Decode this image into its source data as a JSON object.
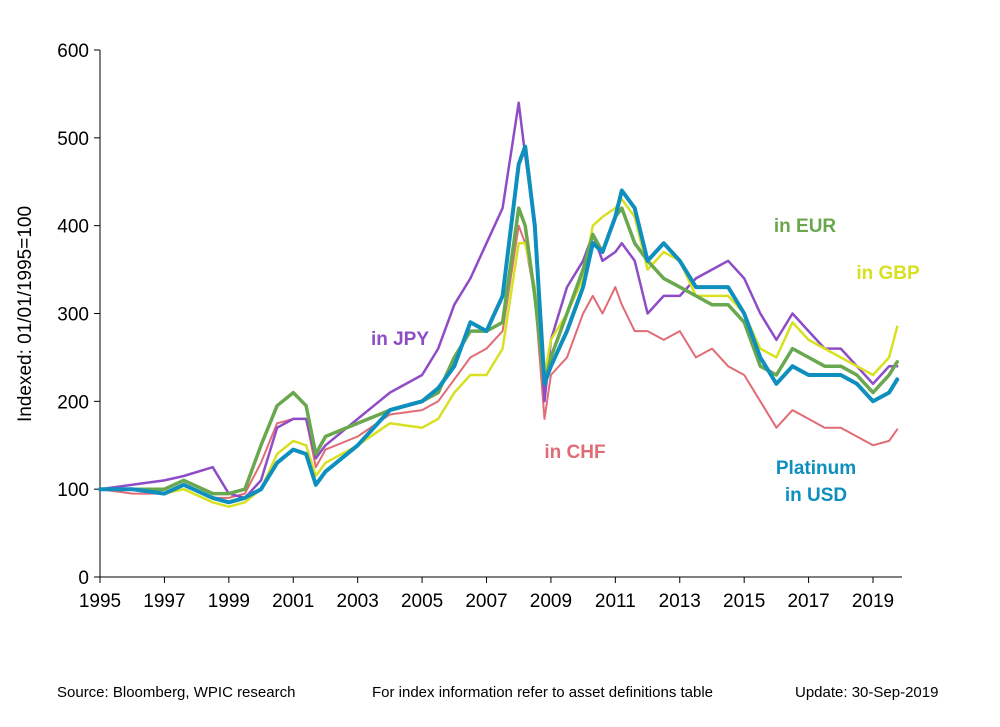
{
  "chart_data": {
    "type": "line",
    "ylabel": "Indexed: 01/01/1995=100",
    "xlim": [
      1995,
      2019.9
    ],
    "ylim": [
      0,
      600
    ],
    "x_ticks": [
      "1995",
      "1997",
      "1999",
      "2001",
      "2003",
      "2005",
      "2007",
      "2009",
      "2011",
      "2013",
      "2015",
      "2017",
      "2019"
    ],
    "y_ticks": [
      "0",
      "100",
      "200",
      "300",
      "400",
      "500",
      "600"
    ],
    "grid": false,
    "x": [
      1995,
      1996,
      1997,
      1997.6,
      1998.5,
      1999,
      1999.5,
      2000,
      2000.5,
      2001,
      2001.4,
      2001.7,
      2002,
      2003,
      2004,
      2005,
      2005.5,
      2006,
      2006.5,
      2007,
      2007.5,
      2008,
      2008.2,
      2008.5,
      2008.8,
      2009,
      2009.5,
      2010,
      2010.3,
      2010.6,
      2011,
      2011.2,
      2011.6,
      2012,
      2012.5,
      2013,
      2013.5,
      2014,
      2014.5,
      2015,
      2015.5,
      2016,
      2016.5,
      2017,
      2017.5,
      2018,
      2018.5,
      2019,
      2019.5,
      2019.75
    ],
    "series": [
      {
        "name": "Platinum in USD",
        "color": "#0e8fbd",
        "width": 4,
        "values": [
          100,
          100,
          95,
          105,
          90,
          85,
          90,
          100,
          130,
          145,
          140,
          105,
          120,
          150,
          190,
          200,
          215,
          240,
          290,
          280,
          320,
          470,
          490,
          400,
          220,
          240,
          280,
          330,
          380,
          370,
          410,
          440,
          420,
          360,
          380,
          360,
          330,
          330,
          330,
          300,
          250,
          220,
          240,
          230,
          230,
          230,
          220,
          200,
          210,
          225
        ]
      },
      {
        "name": "in EUR",
        "color": "#6aa84f",
        "width": 3.5,
        "values": [
          100,
          100,
          100,
          110,
          95,
          95,
          100,
          150,
          195,
          210,
          195,
          140,
          160,
          175,
          190,
          200,
          210,
          250,
          280,
          280,
          290,
          420,
          400,
          320,
          220,
          250,
          300,
          350,
          390,
          370,
          410,
          420,
          380,
          360,
          340,
          330,
          320,
          310,
          310,
          290,
          240,
          230,
          260,
          250,
          240,
          240,
          230,
          210,
          230,
          245
        ]
      },
      {
        "name": "in GBP",
        "color": "#d9e021",
        "width": 2.5,
        "values": [
          100,
          100,
          95,
          100,
          85,
          80,
          85,
          100,
          140,
          155,
          150,
          115,
          130,
          150,
          175,
          170,
          180,
          210,
          230,
          230,
          260,
          380,
          380,
          330,
          230,
          270,
          300,
          340,
          400,
          410,
          420,
          430,
          410,
          350,
          370,
          360,
          320,
          320,
          320,
          300,
          260,
          250,
          290,
          270,
          260,
          250,
          240,
          230,
          250,
          285
        ]
      },
      {
        "name": "in JPY",
        "color": "#8e4cc6",
        "width": 2.5,
        "values": [
          100,
          105,
          110,
          115,
          125,
          95,
          90,
          110,
          170,
          180,
          180,
          135,
          150,
          180,
          210,
          230,
          260,
          310,
          340,
          380,
          420,
          540,
          480,
          400,
          200,
          270,
          330,
          360,
          390,
          360,
          370,
          380,
          360,
          300,
          320,
          320,
          340,
          350,
          360,
          340,
          300,
          270,
          300,
          280,
          260,
          260,
          240,
          220,
          240,
          240
        ]
      },
      {
        "name": "in CHF",
        "color": "#e06c75",
        "width": 2,
        "values": [
          100,
          95,
          95,
          105,
          90,
          90,
          95,
          130,
          175,
          180,
          180,
          125,
          145,
          160,
          185,
          190,
          200,
          225,
          250,
          260,
          280,
          400,
          380,
          320,
          180,
          230,
          250,
          300,
          320,
          300,
          330,
          310,
          280,
          280,
          270,
          280,
          250,
          260,
          240,
          230,
          200,
          170,
          190,
          180,
          170,
          170,
          160,
          150,
          155,
          168
        ]
      }
    ],
    "series_labels": [
      {
        "series": "in EUR",
        "text": "in EUR",
        "color": "#6aa84f"
      },
      {
        "series": "in GBP",
        "text": "in GBP",
        "color": "#d9e021"
      },
      {
        "series": "in JPY",
        "text": "in JPY",
        "color": "#8e4cc6"
      },
      {
        "series": "in CHF",
        "text": "in CHF",
        "color": "#e06c75"
      },
      {
        "series": "Platinum in USD",
        "text_lines": [
          "Platinum",
          "in USD"
        ],
        "color": "#0e8fbd"
      }
    ]
  },
  "footer": {
    "source": "Source: Bloomberg, WPIC research",
    "note": "For index information refer to asset definitions table",
    "update": "Update: 30-Sep-2019"
  }
}
